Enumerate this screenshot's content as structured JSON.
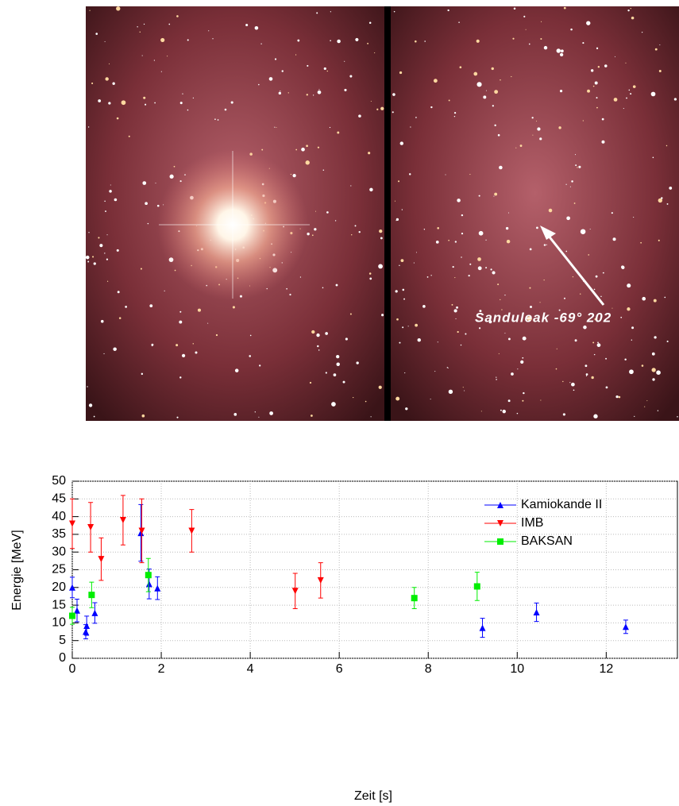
{
  "image_annotation": "Sanduleak -69° 202",
  "chart_data": {
    "type": "scatter",
    "x_label": "Zeit [s]",
    "y_label": "Energie [MeV]",
    "xlim": [
      0,
      13.6
    ],
    "xticks": [
      0,
      2,
      4,
      6,
      8,
      10,
      12
    ],
    "ylim": [
      0,
      50
    ],
    "yticks": [
      0,
      5,
      10,
      15,
      20,
      25,
      30,
      35,
      40,
      45,
      50
    ],
    "grid": true,
    "legend": "upper right",
    "series": [
      {
        "name": "Kamiokande II",
        "color": "#0000ff",
        "marker": "triangle-up",
        "x": [
          0,
          0.107,
          0.303,
          0.324,
          0.507,
          1.541,
          1.728,
          1.915,
          9.219,
          10.433,
          12.439
        ],
        "values": [
          20,
          13.5,
          7.5,
          9.2,
          12.8,
          35.4,
          21,
          19.8,
          8.6,
          13,
          8.9
        ],
        "errors": [
          2.9,
          3.2,
          2,
          2.7,
          2.9,
          8,
          4.2,
          3.2,
          2.7,
          2.6,
          1.9
        ]
      },
      {
        "name": "IMB",
        "color": "#ff0000",
        "marker": "triangle-down",
        "x": [
          0,
          0.412,
          0.65,
          1.141,
          1.562,
          2.684,
          5.01,
          5.582
        ],
        "values": [
          38,
          37,
          28,
          39,
          36,
          36,
          19,
          22
        ],
        "errors": [
          7,
          7,
          6,
          7,
          9,
          6,
          5,
          5
        ]
      },
      {
        "name": "BAKSAN",
        "color": "#00ee00",
        "marker": "square",
        "x": [
          0,
          0.435,
          1.71,
          7.687,
          9.099
        ],
        "values": [
          12,
          17.9,
          23.5,
          17,
          20.3
        ],
        "errors": [
          2.4,
          3.6,
          4.7,
          3,
          4
        ]
      }
    ]
  }
}
